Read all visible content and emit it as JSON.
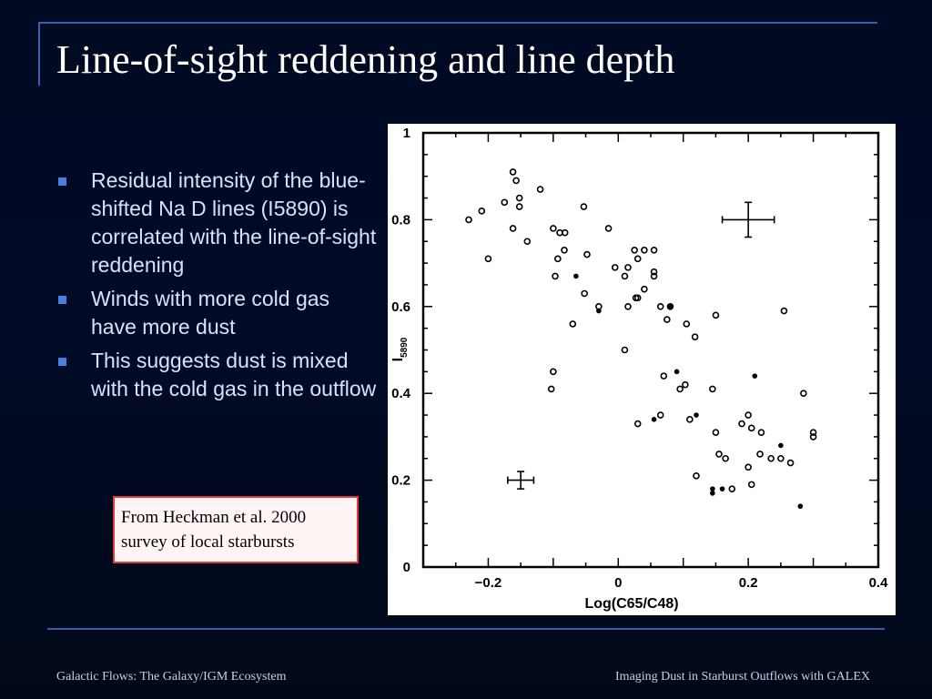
{
  "slide": {
    "title": "Line-of-sight reddening and line depth",
    "bullets": [
      "Residual intensity of the blue-shifted Na D  lines (I5890) is correlated with the line-of-sight reddening",
      "Winds with more cold gas have more dust",
      "This suggests dust is mixed with the cold gas in the outflow"
    ],
    "note": "From Heckman et al. 2000 survey of local starbursts",
    "footer_left": "Galactic Flows: The Galaxy/IGM Ecosystem",
    "footer_right": "Imaging Dust in Starburst Outflows with GALEX"
  },
  "colors": {
    "background": "#000a22",
    "rule": "#3a5fb0",
    "bullet": "#4a7fe0",
    "note_border": "#e03a3a"
  },
  "chart_data": {
    "type": "scatter",
    "xlabel": "Log(C65/C48)",
    "ylabel_main": "I",
    "ylabel_sub": "5890",
    "xlim": [
      -0.3,
      0.4
    ],
    "ylim": [
      0,
      1
    ],
    "xticks": [
      {
        "v": -0.2,
        "label": "−0.2"
      },
      {
        "v": 0,
        "label": "0"
      },
      {
        "v": 0.2,
        "label": "0.2"
      },
      {
        "v": 0.4,
        "label": "0.4"
      }
    ],
    "yticks": [
      {
        "v": 0,
        "label": "0"
      },
      {
        "v": 0.2,
        "label": "0.2"
      },
      {
        "v": 0.4,
        "label": "0.4"
      },
      {
        "v": 0.6,
        "label": "0.6"
      },
      {
        "v": 0.8,
        "label": "0.8"
      },
      {
        "v": 1,
        "label": "1"
      }
    ],
    "open_points": [
      [
        -0.23,
        0.8
      ],
      [
        -0.21,
        0.82
      ],
      [
        -0.2,
        0.71
      ],
      [
        -0.175,
        0.84
      ],
      [
        -0.162,
        0.91
      ],
      [
        -0.157,
        0.89
      ],
      [
        -0.152,
        0.85
      ],
      [
        -0.152,
        0.83
      ],
      [
        -0.162,
        0.78
      ],
      [
        -0.14,
        0.75
      ],
      [
        -0.12,
        0.87
      ],
      [
        -0.1,
        0.78
      ],
      [
        -0.097,
        0.67
      ],
      [
        -0.093,
        0.71
      ],
      [
        -0.09,
        0.77
      ],
      [
        -0.083,
        0.73
      ],
      [
        -0.082,
        0.77
      ],
      [
        -0.053,
        0.83
      ],
      [
        -0.048,
        0.72
      ],
      [
        -0.052,
        0.63
      ],
      [
        -0.07,
        0.56
      ],
      [
        -0.03,
        0.6
      ],
      [
        -0.015,
        0.78
      ],
      [
        -0.005,
        0.69
      ],
      [
        0.015,
        0.69
      ],
      [
        0.01,
        0.67
      ],
      [
        0.025,
        0.73
      ],
      [
        0.03,
        0.71
      ],
      [
        0.04,
        0.73
      ],
      [
        0.055,
        0.73
      ],
      [
        0.055,
        0.68
      ],
      [
        0.055,
        0.67
      ],
      [
        0.04,
        0.64
      ],
      [
        0.03,
        0.62
      ],
      [
        0.027,
        0.62
      ],
      [
        0.015,
        0.6
      ],
      [
        0.01,
        0.5
      ],
      [
        0.065,
        0.6
      ],
      [
        0.075,
        0.57
      ],
      [
        0.08,
        0.6
      ],
      [
        0.105,
        0.56
      ],
      [
        0.118,
        0.53
      ],
      [
        0.15,
        0.58
      ],
      [
        -0.1,
        0.45
      ],
      [
        -0.103,
        0.41
      ],
      [
        0.07,
        0.44
      ],
      [
        0.095,
        0.41
      ],
      [
        0.103,
        0.42
      ],
      [
        0.11,
        0.34
      ],
      [
        0.065,
        0.35
      ],
      [
        0.03,
        0.33
      ],
      [
        0.145,
        0.41
      ],
      [
        0.15,
        0.31
      ],
      [
        0.155,
        0.26
      ],
      [
        0.165,
        0.25
      ],
      [
        0.19,
        0.33
      ],
      [
        0.2,
        0.35
      ],
      [
        0.2,
        0.23
      ],
      [
        0.205,
        0.32
      ],
      [
        0.22,
        0.31
      ],
      [
        0.218,
        0.26
      ],
      [
        0.235,
        0.25
      ],
      [
        0.25,
        0.25
      ],
      [
        0.265,
        0.24
      ],
      [
        0.255,
        0.59
      ],
      [
        0.285,
        0.4
      ],
      [
        0.3,
        0.31
      ],
      [
        0.3,
        0.3
      ],
      [
        0.12,
        0.21
      ],
      [
        0.175,
        0.18
      ],
      [
        0.205,
        0.19
      ]
    ],
    "filled_points": [
      [
        -0.065,
        0.67
      ],
      [
        -0.03,
        0.59
      ],
      [
        0.08,
        0.6
      ],
      [
        0.09,
        0.45
      ],
      [
        0.055,
        0.34
      ],
      [
        0.12,
        0.35
      ],
      [
        0.21,
        0.44
      ],
      [
        0.145,
        0.18
      ],
      [
        0.145,
        0.17
      ],
      [
        0.16,
        0.18
      ],
      [
        0.25,
        0.28
      ],
      [
        0.28,
        0.14
      ]
    ],
    "error_bars": [
      {
        "x": 0.2,
        "y": 0.8,
        "xerr": 0.04,
        "yerr": 0.04
      },
      {
        "x": -0.15,
        "y": 0.2,
        "xerr": 0.02,
        "yerr": 0.02
      }
    ]
  }
}
